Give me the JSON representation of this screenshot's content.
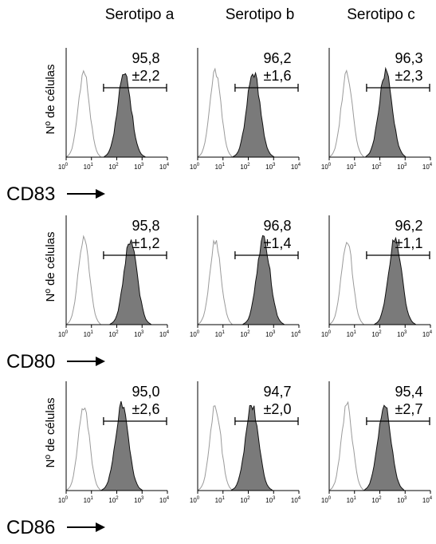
{
  "chart_data": {
    "type": "histogram",
    "description_columns": [
      "Serotipo a",
      "Serotipo b",
      "Serotipo c"
    ],
    "columns": [
      "Serotipo a",
      "Serotipo b",
      "Serotipo c"
    ],
    "ylabel": "Nº de células",
    "x_axis": {
      "scale": "log",
      "xlim": [
        1,
        10000
      ],
      "ticks": [
        {
          "base": "10",
          "exp": "0"
        },
        {
          "base": "10",
          "exp": "1"
        },
        {
          "base": "10",
          "exp": "2"
        },
        {
          "base": "10",
          "exp": "3"
        },
        {
          "base": "10",
          "exp": "4"
        }
      ]
    },
    "gate_range": [
      30,
      10000
    ],
    "series_styles": {
      "control": {
        "fill": "none",
        "stroke": "#9a9a9a"
      },
      "marker": {
        "fill": "#7a7a7a",
        "stroke": "#111111"
      }
    },
    "rows": [
      {
        "marker": "CD83",
        "panels": [
          {
            "pct": "95,8",
            "sd": "±2,2",
            "control_peak": 5,
            "marker_peak": 200
          },
          {
            "pct": "96,2",
            "sd": "±1,6",
            "control_peak": 5,
            "marker_peak": 160
          },
          {
            "pct": "96,3",
            "sd": "±2,3",
            "control_peak": 5,
            "marker_peak": 170
          }
        ]
      },
      {
        "marker": "CD80",
        "panels": [
          {
            "pct": "95,8",
            "sd": "±1,2",
            "control_peak": 5,
            "marker_peak": 350
          },
          {
            "pct": "96,8",
            "sd": "±1,4",
            "control_peak": 5,
            "marker_peak": 400
          },
          {
            "pct": "96,2",
            "sd": "±1,1",
            "control_peak": 5,
            "marker_peak": 400
          }
        ]
      },
      {
        "marker": "CD86",
        "panels": [
          {
            "pct": "95,0",
            "sd": "±2,6",
            "control_peak": 5,
            "marker_peak": 160
          },
          {
            "pct": "94,7",
            "sd": "±2,0",
            "control_peak": 5,
            "marker_peak": 140
          },
          {
            "pct": "95,4",
            "sd": "±2,7",
            "control_peak": 5,
            "marker_peak": 150
          }
        ]
      }
    ]
  }
}
